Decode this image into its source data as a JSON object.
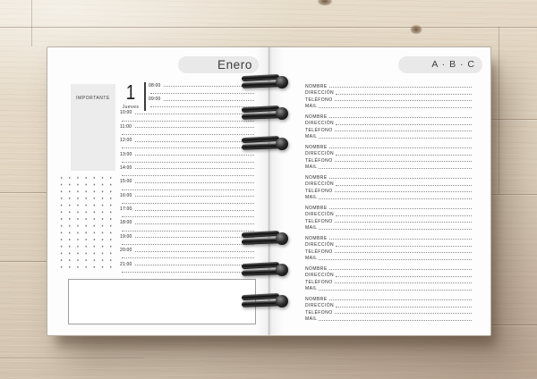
{
  "binding": {
    "ring_count": 6
  },
  "left_page": {
    "month_label": "Enero",
    "important_label": "IMPORTANTE",
    "day_number": "1",
    "day_name": "Jueves",
    "hours": [
      "08:00",
      "09:00",
      "10:00",
      "11:00",
      "12:00",
      "13:00",
      "14:00",
      "15:00",
      "16:00",
      "17:00",
      "18:00",
      "19:00",
      "20:00",
      "21:00"
    ]
  },
  "right_page": {
    "index_label": "A · B · C",
    "contact_field_labels": [
      "NOMBRE",
      "DIRECCIÓN",
      "TELÉFONO",
      "MAIL"
    ],
    "contact_block_count": 8
  },
  "colors": {
    "banner_bg": "#e9e9e9",
    "page_bg": "#fdfdfd",
    "text": "#3a3a3a",
    "leader_dots": "#8c8c8c",
    "ring": "#151515",
    "wood_light": "#e9dfcd",
    "wood_dark": "#c9b9a7"
  }
}
